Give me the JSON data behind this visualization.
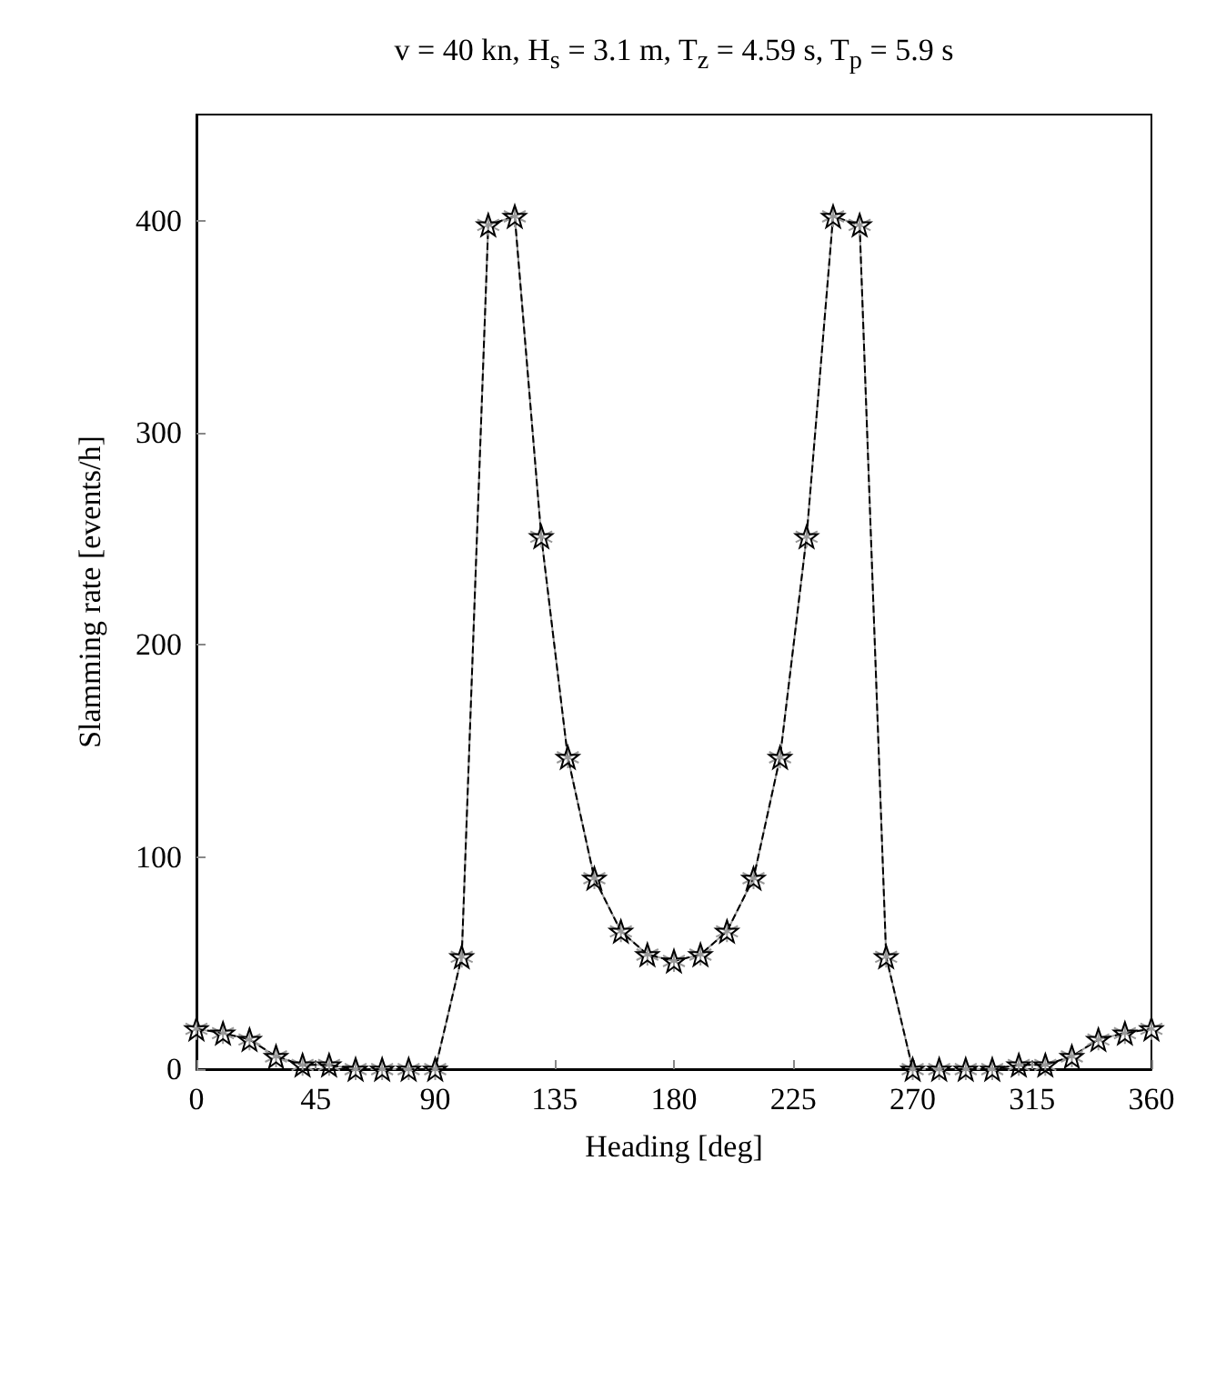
{
  "chart_data": {
    "type": "line",
    "title": "v = 40 kn, H$_{s}$ = 3.1 m, T$_{z}$ = 4.59 s, T$_{p}$ = 5.9 s",
    "xlabel": "Heading [deg]",
    "ylabel": "Slamming rate [events/h]",
    "x": [
      0,
      10,
      20,
      30,
      40,
      50,
      60,
      70,
      80,
      90,
      100,
      110,
      120,
      130,
      140,
      150,
      160,
      170,
      180,
      190,
      200,
      210,
      220,
      230,
      240,
      250,
      260,
      270,
      280,
      290,
      300,
      310,
      320,
      330,
      340,
      350,
      360
    ],
    "series": [
      {
        "color": "#999999",
        "line_style": "solid",
        "marker": "cross",
        "values": [
          19,
          17,
          14,
          6,
          2,
          2,
          0,
          0,
          0,
          0,
          53,
          398,
          402,
          251,
          147,
          90,
          65,
          54,
          51,
          54,
          65,
          90,
          147,
          251,
          402,
          398,
          53,
          0,
          0,
          0,
          0,
          2,
          2,
          6,
          14,
          17,
          19
        ]
      },
      {
        "color": "#000000",
        "line_style": "dashed",
        "marker": "star",
        "values": [
          19,
          17,
          14,
          6,
          2,
          2,
          0,
          0,
          0,
          0,
          53,
          398,
          402,
          251,
          147,
          90,
          65,
          54,
          51,
          54,
          65,
          90,
          147,
          251,
          402,
          398,
          53,
          0,
          0,
          0,
          0,
          2,
          2,
          6,
          14,
          17,
          19
        ]
      }
    ],
    "xlim": [
      0,
      360
    ],
    "xticks": [
      0,
      45,
      90,
      135,
      180,
      225,
      270,
      315,
      360
    ],
    "ylim": [
      0,
      450
    ],
    "yticks": [
      0,
      100,
      200,
      300,
      400
    ],
    "grid": false
  }
}
